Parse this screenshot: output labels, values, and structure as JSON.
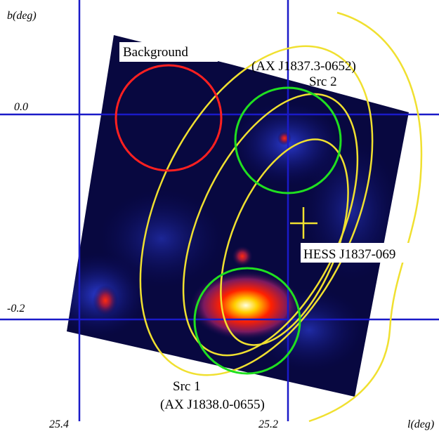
{
  "axes": {
    "y_label": "b(deg)",
    "x_label": "l(deg)",
    "y_ticks": [
      "0.0",
      "-0.2"
    ],
    "x_ticks": [
      "25.4",
      "25.2"
    ]
  },
  "annotations": {
    "background": "Background",
    "src2_id": "(AX J1837.3-0652)",
    "src2": "Src 2",
    "hess": "HESS J1837-069",
    "src1": "Src 1",
    "src1_id": "(AX J1838.0-0655)"
  }
}
